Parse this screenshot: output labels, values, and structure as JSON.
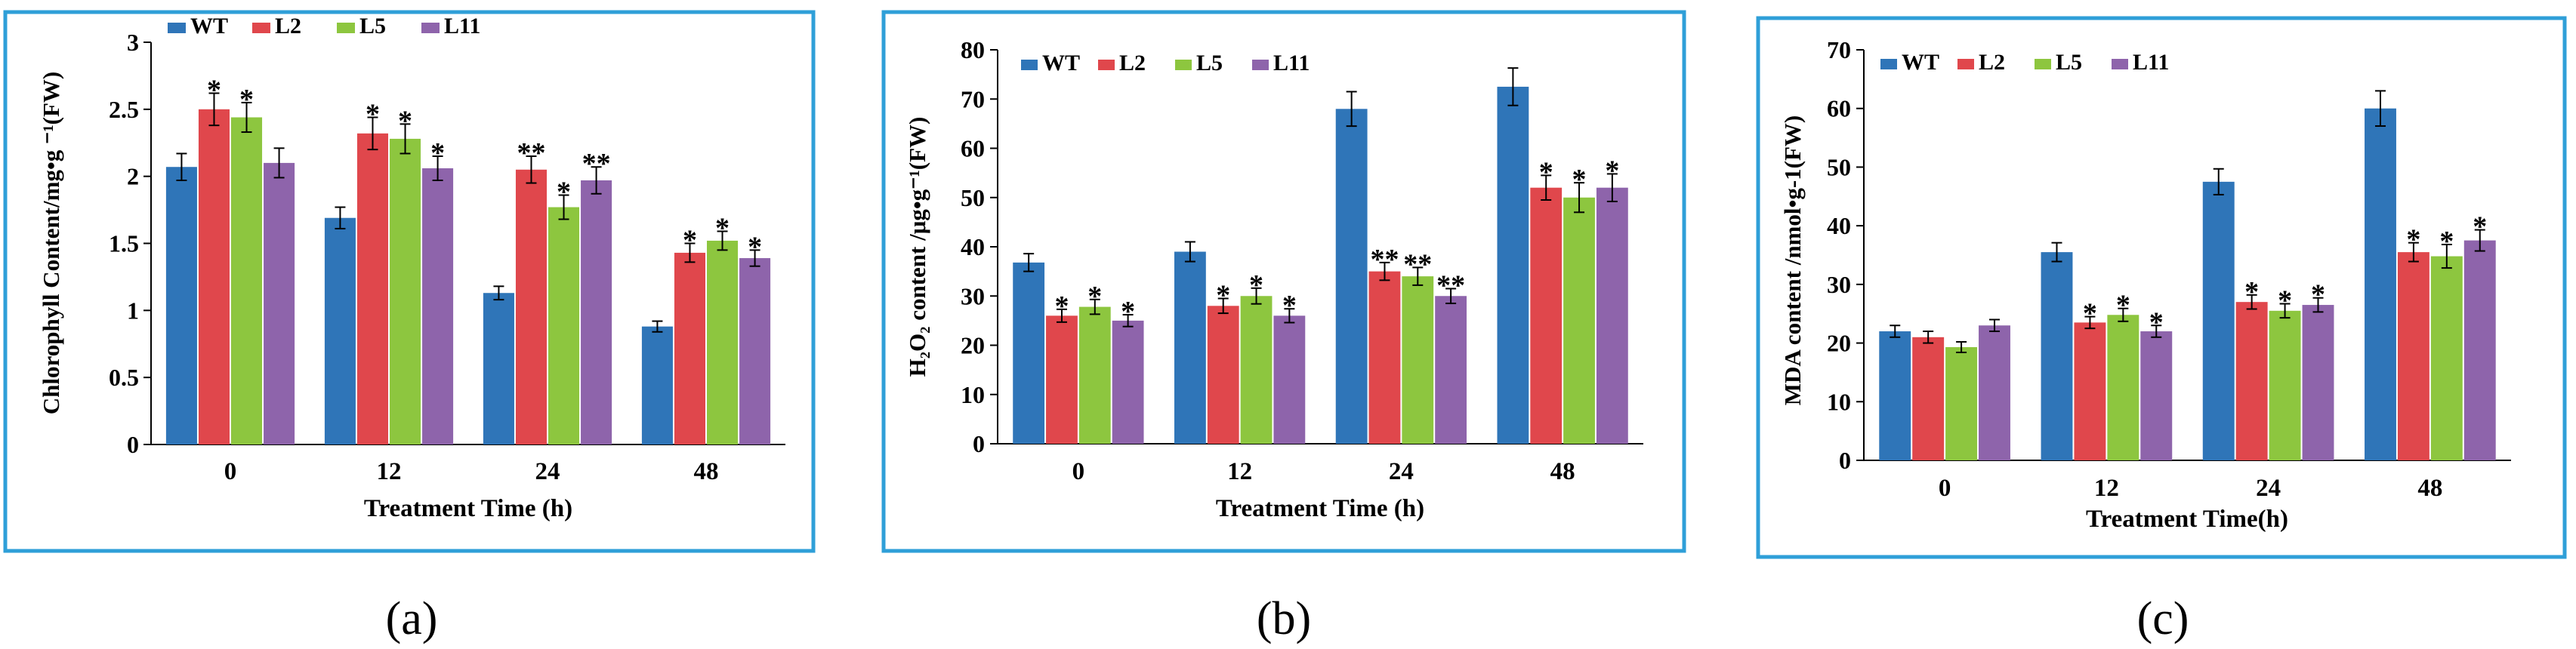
{
  "colors": {
    "frame": "#2f9fd8",
    "axis": "#000000",
    "WT": "#2f75b8",
    "L2": "#e0474c",
    "L5": "#8dc63f",
    "L11": "#8e64ab"
  },
  "chart_data": [
    {
      "type": "bar",
      "panel_label": "(a)",
      "ylabel": "Chlorophyll Content/mg•g ⁻¹(FW)",
      "xlabel": "Treatment Time (h)",
      "categories": [
        "0",
        "12",
        "24",
        "48"
      ],
      "ylim": [
        0,
        3
      ],
      "yticks": [
        0,
        0.5,
        1,
        1.5,
        2,
        2.5,
        3
      ],
      "ytick_labels": [
        "0",
        "0.5",
        "1",
        "1.5",
        "2",
        "2.5",
        "3"
      ],
      "legend": [
        "WT",
        "L2",
        "L5",
        "L11"
      ],
      "series": [
        {
          "name": "WT",
          "values": [
            2.07,
            1.69,
            1.13,
            0.88
          ],
          "errors": [
            0.1,
            0.08,
            0.05,
            0.04
          ],
          "marks": [
            "",
            "",
            "",
            ""
          ]
        },
        {
          "name": "L2",
          "values": [
            2.5,
            2.32,
            2.05,
            1.43
          ],
          "errors": [
            0.12,
            0.12,
            0.1,
            0.07
          ],
          "marks": [
            "*",
            "*",
            "**",
            "*"
          ]
        },
        {
          "name": "L5",
          "values": [
            2.44,
            2.28,
            1.77,
            1.52
          ],
          "errors": [
            0.11,
            0.11,
            0.09,
            0.07
          ],
          "marks": [
            "*",
            "*",
            "*",
            "*"
          ]
        },
        {
          "name": "L11",
          "values": [
            2.1,
            2.06,
            1.97,
            1.39
          ],
          "errors": [
            0.11,
            0.09,
            0.1,
            0.06
          ],
          "marks": [
            "",
            "*",
            "**",
            "*"
          ]
        }
      ]
    },
    {
      "type": "bar",
      "panel_label": "(b)",
      "ylabel": "H₂O₂ content /μg•g⁻¹(FW)",
      "xlabel": "Treatment Time (h)",
      "categories": [
        "0",
        "12",
        "24",
        "48"
      ],
      "ylim": [
        0,
        80
      ],
      "yticks": [
        0,
        10,
        20,
        30,
        40,
        50,
        60,
        70,
        80
      ],
      "ytick_labels": [
        "0",
        "10",
        "20",
        "30",
        "40",
        "50",
        "60",
        "70",
        "80"
      ],
      "legend": [
        "WT",
        "L2",
        "L5",
        "L11"
      ],
      "series": [
        {
          "name": "WT",
          "values": [
            36.8,
            39.0,
            68.0,
            72.5
          ],
          "errors": [
            1.8,
            2.0,
            3.5,
            3.8
          ],
          "marks": [
            "",
            "",
            "",
            ""
          ]
        },
        {
          "name": "L2",
          "values": [
            26.0,
            28.0,
            35.0,
            52.0
          ],
          "errors": [
            1.3,
            1.5,
            1.8,
            2.5
          ],
          "marks": [
            "*",
            "*",
            "**",
            "*"
          ]
        },
        {
          "name": "L5",
          "values": [
            27.8,
            30.0,
            34.0,
            50.0
          ],
          "errors": [
            1.5,
            1.6,
            1.8,
            3.0
          ],
          "marks": [
            "*",
            "*",
            "**",
            "*"
          ]
        },
        {
          "name": "L11",
          "values": [
            25.0,
            26.0,
            30.0,
            52.0
          ],
          "errors": [
            1.2,
            1.4,
            1.5,
            2.8
          ],
          "marks": [
            "*",
            "*",
            "**",
            "*"
          ]
        }
      ]
    },
    {
      "type": "bar",
      "panel_label": "(c)",
      "ylabel": "MDA content /nmol•g-1(FW)",
      "xlabel": "Treatment Time(h)",
      "categories": [
        "0",
        "12",
        "24",
        "48"
      ],
      "ylim": [
        0,
        70
      ],
      "yticks": [
        0,
        10,
        20,
        30,
        40,
        50,
        60,
        70
      ],
      "ytick_labels": [
        "0",
        "10",
        "20",
        "30",
        "40",
        "50",
        "60",
        "70"
      ],
      "legend": [
        "WT",
        "L2",
        "L5",
        "L11"
      ],
      "series": [
        {
          "name": "WT",
          "values": [
            22.0,
            35.5,
            47.5,
            60.0
          ],
          "errors": [
            1.0,
            1.6,
            2.2,
            3.0
          ],
          "marks": [
            "",
            "",
            "",
            ""
          ]
        },
        {
          "name": "L2",
          "values": [
            21.0,
            23.5,
            27.0,
            35.5
          ],
          "errors": [
            1.0,
            1.0,
            1.2,
            1.6
          ],
          "marks": [
            "",
            "*",
            "*",
            "*"
          ]
        },
        {
          "name": "L5",
          "values": [
            19.3,
            24.8,
            25.5,
            34.8
          ],
          "errors": [
            0.9,
            1.1,
            1.2,
            2.0
          ],
          "marks": [
            "",
            "*",
            "*",
            "*"
          ]
        },
        {
          "name": "L11",
          "values": [
            23.0,
            22.0,
            26.5,
            37.5
          ],
          "errors": [
            1.0,
            1.0,
            1.2,
            1.8
          ],
          "marks": [
            "",
            "*",
            "*",
            "*"
          ]
        }
      ]
    }
  ]
}
